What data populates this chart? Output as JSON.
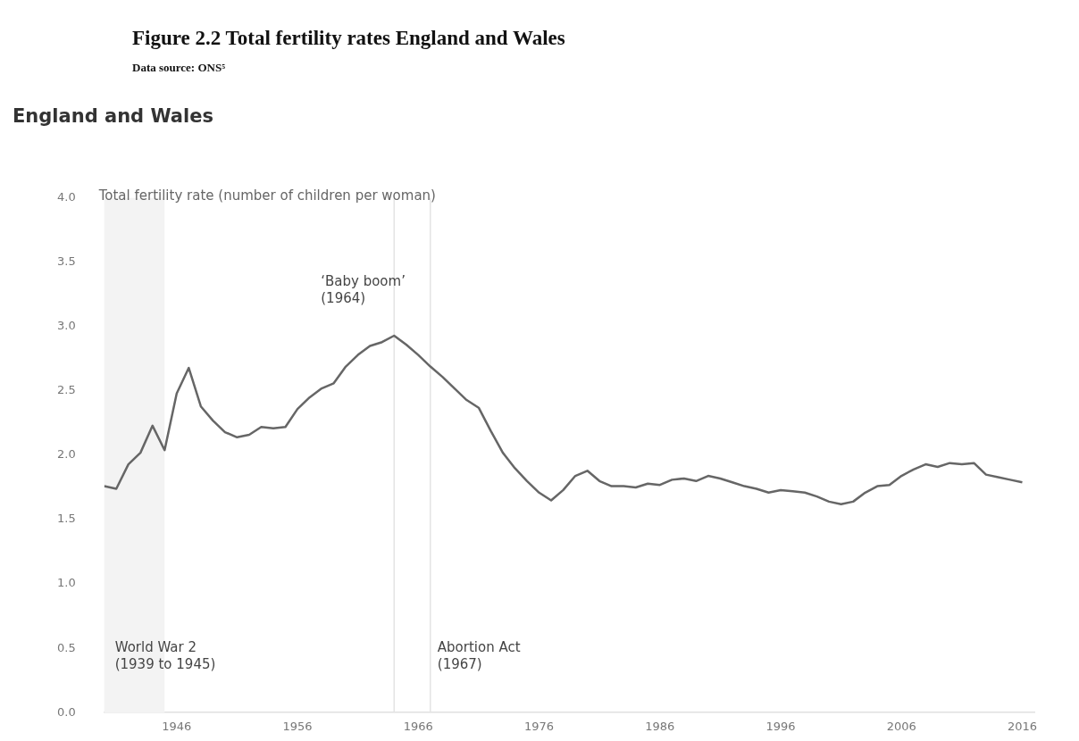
{
  "chart_data": {
    "type": "line",
    "title": "Figure 2.2 Total fertility rates England and Wales",
    "subtitle": "Data source: ONS⁵",
    "annotations": [
      "England and Wales"
    ],
    "ylabel": "Total fertility rate (number of children per woman)",
    "x": [
      1940,
      1941,
      1942,
      1943,
      1944,
      1945,
      1946,
      1947,
      1948,
      1949,
      1950,
      1951,
      1952,
      1953,
      1954,
      1955,
      1956,
      1957,
      1958,
      1959,
      1960,
      1961,
      1962,
      1963,
      1964,
      1965,
      1966,
      1967,
      1968,
      1969,
      1970,
      1971,
      1972,
      1973,
      1974,
      1975,
      1976,
      1977,
      1978,
      1979,
      1980,
      1981,
      1982,
      1983,
      1984,
      1985,
      1986,
      1987,
      1988,
      1989,
      1990,
      1991,
      1992,
      1993,
      1994,
      1995,
      1996,
      1997,
      1998,
      1999,
      2000,
      2001,
      2002,
      2003,
      2004,
      2005,
      2006,
      2007,
      2008,
      2009,
      2010,
      2011,
      2012,
      2013,
      2014,
      2015,
      2016
    ],
    "series": [
      {
        "color": "#666666",
        "values": [
          1.76,
          1.74,
          1.93,
          2.02,
          2.23,
          2.04,
          2.48,
          2.68,
          2.38,
          2.27,
          2.18,
          2.14,
          2.16,
          2.22,
          2.21,
          2.22,
          2.36,
          2.45,
          2.52,
          2.56,
          2.69,
          2.78,
          2.85,
          2.88,
          2.93,
          2.86,
          2.78,
          2.69,
          2.61,
          2.52,
          2.43,
          2.37,
          2.19,
          2.02,
          1.9,
          1.8,
          1.71,
          1.65,
          1.73,
          1.84,
          1.88,
          1.8,
          1.76,
          1.76,
          1.75,
          1.78,
          1.77,
          1.81,
          1.82,
          1.8,
          1.84,
          1.82,
          1.79,
          1.76,
          1.74,
          1.71,
          1.73,
          1.72,
          1.71,
          1.68,
          1.64,
          1.62,
          1.64,
          1.71,
          1.76,
          1.77,
          1.84,
          1.89,
          1.93,
          1.91,
          1.94,
          1.93,
          1.94,
          1.85,
          1.83,
          1.81,
          1.79
        ]
      }
    ],
    "xlim": [
      1940,
      2017
    ],
    "xticks": [
      1946,
      1956,
      1966,
      1976,
      1986,
      1996,
      2006,
      2016
    ],
    "ylim": [
      0,
      4
    ],
    "yticks": [
      {
        "value": 0,
        "label": "0.0"
      },
      {
        "value": 0.5,
        "label": "0.5"
      },
      {
        "value": 1,
        "label": "1.0"
      },
      {
        "value": 1.5,
        "label": "1.5"
      },
      {
        "value": 2,
        "label": "2.0"
      },
      {
        "value": 2.5,
        "label": "2.5"
      },
      {
        "value": 3,
        "label": "3.0"
      },
      {
        "value": 3.5,
        "label": "3.5"
      },
      {
        "value": 4,
        "label": "4.0"
      }
    ],
    "ref_lines": [
      {
        "axis": "x",
        "value": 1964,
        "label": "‘Baby boom’\n(1964)",
        "color": "#e4e4e4"
      },
      {
        "axis": "x",
        "value": 1967,
        "label": "Abortion Act\n(1967)",
        "color": "#e4e4e4"
      }
    ],
    "bands": [
      {
        "axis": "x",
        "from": 1940,
        "to": 1945,
        "label": "World War 2\n(1939 to 1945)",
        "color": "#f3f3f3"
      }
    ],
    "marker": "none",
    "line_style": "solid"
  }
}
